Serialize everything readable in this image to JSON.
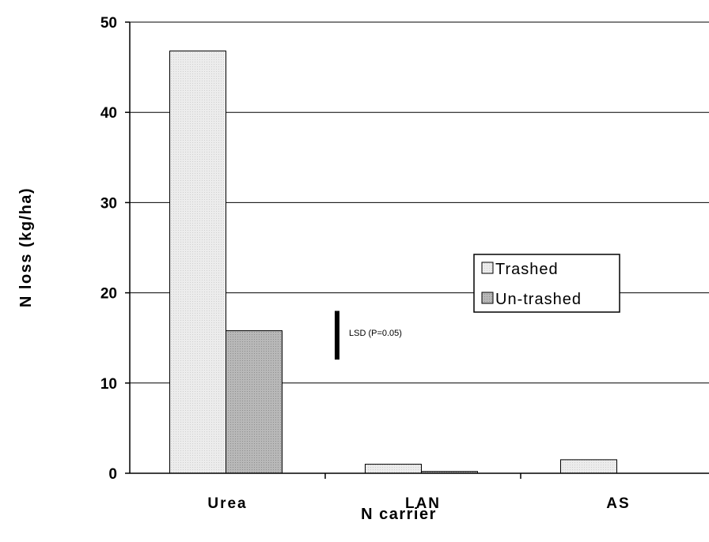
{
  "chart_data": {
    "type": "bar",
    "title": "",
    "xlabel": "N carrier",
    "ylabel": "N loss (kg/ha)",
    "categories": [
      "Urea",
      "LAN",
      "AS"
    ],
    "series": [
      {
        "name": "Trashed",
        "values": [
          46.8,
          1.0,
          1.5
        ],
        "color": "#eaeaea"
      },
      {
        "name": "Un-trashed",
        "values": [
          15.8,
          0.2,
          0.0
        ],
        "color": "#b4b4b4"
      }
    ],
    "ylim": [
      0,
      50
    ],
    "yticks": [
      0,
      10,
      20,
      30,
      40,
      50
    ],
    "grid": "horizontal",
    "legend_position": "center-right",
    "annotation": {
      "label": "LSD (P=0.05)",
      "y_low": 12.6,
      "y_high": 18.0
    }
  }
}
